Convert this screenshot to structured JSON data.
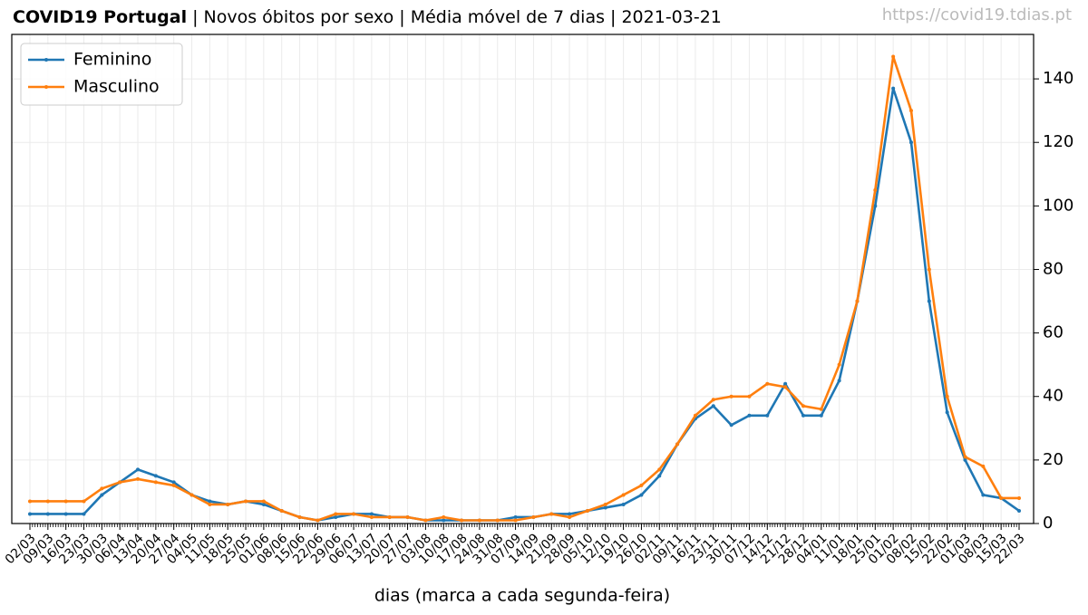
{
  "chart_data": {
    "type": "line",
    "title": "COVID19 Portugal",
    "subtitle": "| Novos óbitos por sexo | Média móvel de 7 dias | 2021-03-21",
    "source": "https://covid19.tdias.pt",
    "x_label": "dias (marca a cada segunda-feira)",
    "categories": [
      "02/03",
      "09/03",
      "16/03",
      "23/03",
      "30/03",
      "06/04",
      "13/04",
      "20/04",
      "27/04",
      "04/05",
      "11/05",
      "18/05",
      "25/05",
      "01/06",
      "08/06",
      "15/06",
      "22/06",
      "29/06",
      "06/07",
      "13/07",
      "20/07",
      "27/07",
      "03/08",
      "10/08",
      "17/08",
      "24/08",
      "31/08",
      "07/09",
      "14/09",
      "21/09",
      "28/09",
      "05/10",
      "12/10",
      "19/10",
      "26/10",
      "02/11",
      "09/11",
      "16/11",
      "23/11",
      "30/11",
      "07/12",
      "14/12",
      "21/12",
      "28/12",
      "04/01",
      "11/01",
      "18/01",
      "25/01",
      "01/02",
      "08/02",
      "15/02",
      "22/02",
      "01/03",
      "08/03",
      "15/03",
      "22/03"
    ],
    "series": [
      {
        "name": "Feminino",
        "color": "#1f77b4",
        "values": [
          3,
          3,
          3,
          3,
          9,
          13,
          17,
          15,
          13,
          9,
          7,
          6,
          7,
          6,
          4,
          2,
          1,
          2,
          3,
          3,
          2,
          2,
          1,
          1,
          1,
          1,
          1,
          2,
          2,
          3,
          3,
          4,
          5,
          6,
          9,
          15,
          25,
          33,
          37,
          31,
          34,
          34,
          44,
          34,
          34,
          45,
          70,
          100,
          137,
          120,
          70,
          35,
          20,
          9,
          8,
          4
        ]
      },
      {
        "name": "Masculino",
        "color": "#ff7f0e",
        "values": [
          7,
          7,
          7,
          7,
          11,
          13,
          14,
          13,
          12,
          9,
          6,
          6,
          7,
          7,
          4,
          2,
          1,
          3,
          3,
          2,
          2,
          2,
          1,
          2,
          1,
          1,
          1,
          1,
          2,
          3,
          2,
          4,
          6,
          9,
          12,
          17,
          25,
          34,
          39,
          40,
          40,
          44,
          43,
          37,
          36,
          50,
          70,
          105,
          147,
          130,
          80,
          40,
          21,
          18,
          8,
          8
        ]
      }
    ],
    "ylim": [
      0,
      154
    ],
    "yticks": [
      0,
      20,
      40,
      60,
      80,
      100,
      120,
      140
    ],
    "grid": true,
    "legend": "upper left"
  }
}
